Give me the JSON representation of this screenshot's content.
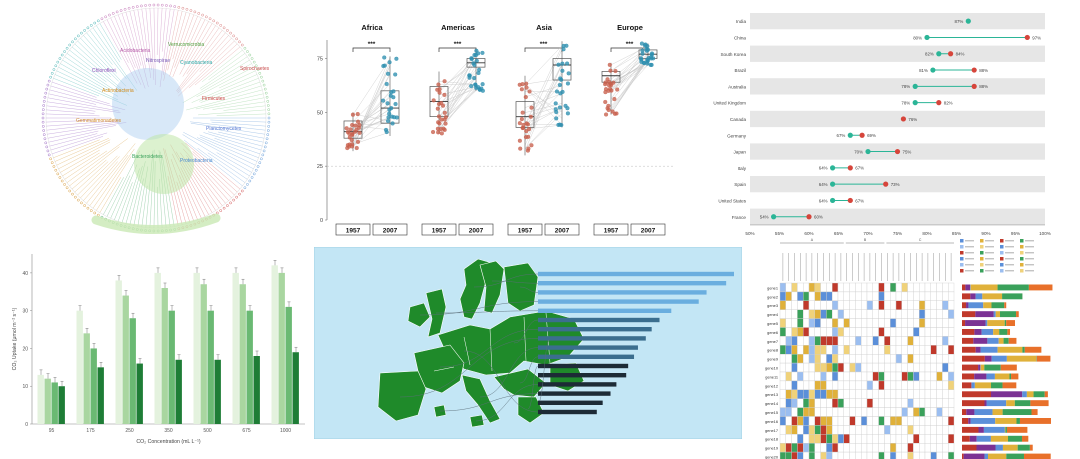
{
  "colors": {
    "green": "#1f8a2a",
    "sea": "#c3e6f5",
    "red": "#d6453b",
    "teal": "#2bb597",
    "stripe": "#e6e6e6",
    "box_red": "#c8604d",
    "box_blue": "#2e8fb0"
  },
  "dumbbell": {
    "type": "dumbbell",
    "countries": [
      "India",
      "China",
      "South Korea",
      "Brazil",
      "Australia",
      "United Kingdom",
      "Canada",
      "Germany",
      "Japan",
      "Italy",
      "Spain",
      "United States",
      "France"
    ],
    "start": [
      87,
      80,
      82,
      81,
      78,
      78,
      null,
      67,
      70,
      64,
      64,
      64,
      54
    ],
    "end": [
      null,
      97,
      84,
      88,
      88,
      82,
      76,
      69,
      75,
      67,
      73,
      67,
      60
    ],
    "start_labels": [
      "87%",
      "80%",
      "82%",
      "81%",
      "78%",
      "78%",
      "",
      "67%",
      "70%",
      "64%",
      "64%",
      "64%",
      "54%"
    ],
    "end_labels": [
      "",
      "97%",
      "84%",
      "88%",
      "88%",
      "82%",
      "76%",
      "69%",
      "75%",
      "67%",
      "73%",
      "67%",
      "60%"
    ],
    "xlim": [
      50,
      100
    ],
    "ticks": [
      "50%",
      "55%",
      "60%",
      "65%",
      "70%",
      "75%",
      "80%",
      "85%",
      "90%",
      "95%",
      "100%"
    ]
  },
  "boxplots": {
    "type": "box",
    "panels": [
      {
        "title": "Africa",
        "sig": "***",
        "groups": [
          "1957",
          "2007"
        ],
        "q1": [
          38,
          45
        ],
        "median": [
          41,
          52
        ],
        "q3": [
          46,
          60
        ],
        "min": [
          32,
          39
        ],
        "max": [
          50,
          76
        ]
      },
      {
        "title": "Americas",
        "sig": "***",
        "groups": [
          "1957",
          "2007"
        ],
        "q1": [
          48,
          71
        ],
        "median": [
          55,
          73
        ],
        "q3": [
          62,
          75
        ],
        "min": [
          40,
          60
        ],
        "max": [
          69,
          80
        ]
      },
      {
        "title": "Asia",
        "sig": "***",
        "groups": [
          "1957",
          "2007"
        ],
        "q1": [
          43,
          65
        ],
        "median": [
          48,
          72
        ],
        "q3": [
          55,
          75
        ],
        "min": [
          30,
          43
        ],
        "max": [
          67,
          83
        ]
      },
      {
        "title": "Europe",
        "sig": "***",
        "groups": [
          "1957",
          "2007"
        ],
        "q1": [
          64,
          75
        ],
        "median": [
          67,
          77
        ],
        "q3": [
          69,
          79
        ],
        "min": [
          49,
          72
        ],
        "max": [
          73,
          82
        ]
      }
    ],
    "yticks": [
      "0",
      "25",
      "50",
      "75"
    ],
    "ylim": [
      0,
      85
    ]
  },
  "bar_chart": {
    "type": "bar",
    "ylabel": "CO₂ Uptake (μmol m⁻² s⁻¹)",
    "xlabel": "CO₂ Concentration (mL L⁻¹)",
    "categories": [
      "95",
      "175",
      "250",
      "350",
      "500",
      "675",
      "1000"
    ],
    "yticks": [
      "0",
      "10",
      "20",
      "30",
      "40"
    ],
    "ylim": [
      0,
      45
    ],
    "series": [
      {
        "name": "",
        "color": "#e4f2de",
        "values": [
          13,
          30,
          38,
          40,
          40,
          40,
          42
        ]
      },
      {
        "name": "",
        "color": "#a9d6a0",
        "values": [
          12,
          24,
          34,
          36,
          37,
          37,
          40
        ]
      },
      {
        "name": "",
        "color": "#6ab973",
        "values": [
          11,
          20,
          28,
          30,
          30,
          30,
          31
        ]
      },
      {
        "name": "",
        "color": "#1e7d36",
        "values": [
          10,
          15,
          16,
          17,
          17,
          18,
          19
        ]
      }
    ]
  },
  "map_bars": {
    "type": "bar",
    "values": [
      100,
      96,
      86,
      82,
      68,
      62,
      58,
      55,
      51,
      49,
      46,
      45,
      40,
      37,
      33,
      30
    ]
  },
  "heatmap": {
    "type": "heatmap",
    "rows": [
      "gene1",
      "gene2",
      "gene3",
      "gene4",
      "gene5",
      "gene6",
      "gene7",
      "gene8",
      "gene9",
      "gene10",
      "gene11",
      "gene12",
      "gene13",
      "gene14",
      "gene15",
      "gene16",
      "gene17",
      "gene18",
      "gene19",
      "gene20"
    ],
    "groups": [
      "A",
      "B",
      "C"
    ],
    "stack_colors": [
      "#c0392b",
      "#7b3294",
      "#5b8fd9",
      "#e0b13a",
      "#3aa15b",
      "#e8702a"
    ]
  },
  "dendrogram": {
    "type": "tree",
    "labels": [
      {
        "text": "Proteobacteria",
        "color": "#4a8ad0"
      },
      {
        "text": "Firmicutes",
        "color": "#cc3f3f"
      },
      {
        "text": "Bacteroidetes",
        "color": "#3aa15b"
      },
      {
        "text": "Actinobacteria",
        "color": "#cf8a1a"
      },
      {
        "text": "Chloroflexi",
        "color": "#8a50b8"
      },
      {
        "text": "Cyanobacteria",
        "color": "#2aa6a6"
      },
      {
        "text": "Acidobacteria",
        "color": "#b65aa8"
      },
      {
        "text": "Planctomycetes",
        "color": "#5c7cd6"
      },
      {
        "text": "Spirochaetes",
        "color": "#c94e4e"
      },
      {
        "text": "Verrucomicrobia",
        "color": "#4f9e3c"
      },
      {
        "text": "Gemmatimonadetes",
        "color": "#d0882b"
      },
      {
        "text": "Nitrospirae",
        "color": "#7a5db8"
      }
    ]
  }
}
